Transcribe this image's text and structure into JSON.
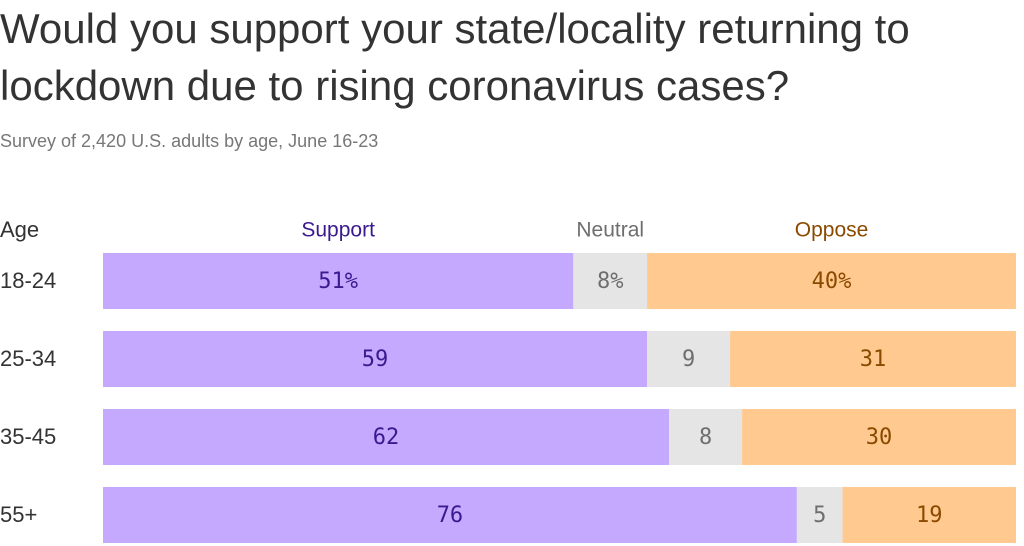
{
  "title": "Would you support your state/locality returning to lockdown due to rising coronavirus cases?",
  "subtitle": "Survey of 2,420 U.S. adults by age, June 16-23",
  "chart_data": {
    "type": "bar",
    "orientation": "horizontal",
    "stacked": true,
    "category_header": "Age",
    "categories": [
      "18-24",
      "25-34",
      "35-45",
      "55+"
    ],
    "series": [
      {
        "name": "Support",
        "values": [
          51,
          59,
          62,
          76
        ],
        "labels": [
          "51%",
          "59",
          "62",
          "76"
        ],
        "color": "#c4a9ff",
        "text_color": "#3b1a8f"
      },
      {
        "name": "Neutral",
        "values": [
          8,
          9,
          8,
          5
        ],
        "labels": [
          "8%",
          "9",
          "8",
          "5"
        ],
        "color": "#e5e5e5",
        "text_color": "#6e6e6e"
      },
      {
        "name": "Oppose",
        "values": [
          40,
          31,
          30,
          19
        ],
        "labels": [
          "40%",
          "31",
          "30",
          "19"
        ],
        "color": "#ffc98f",
        "text_color": "#8a4a00"
      }
    ],
    "header_colors": [
      "#3b1a8f",
      "#6e6e6e",
      "#8a4a00"
    ],
    "grid": false,
    "legend": "top"
  }
}
